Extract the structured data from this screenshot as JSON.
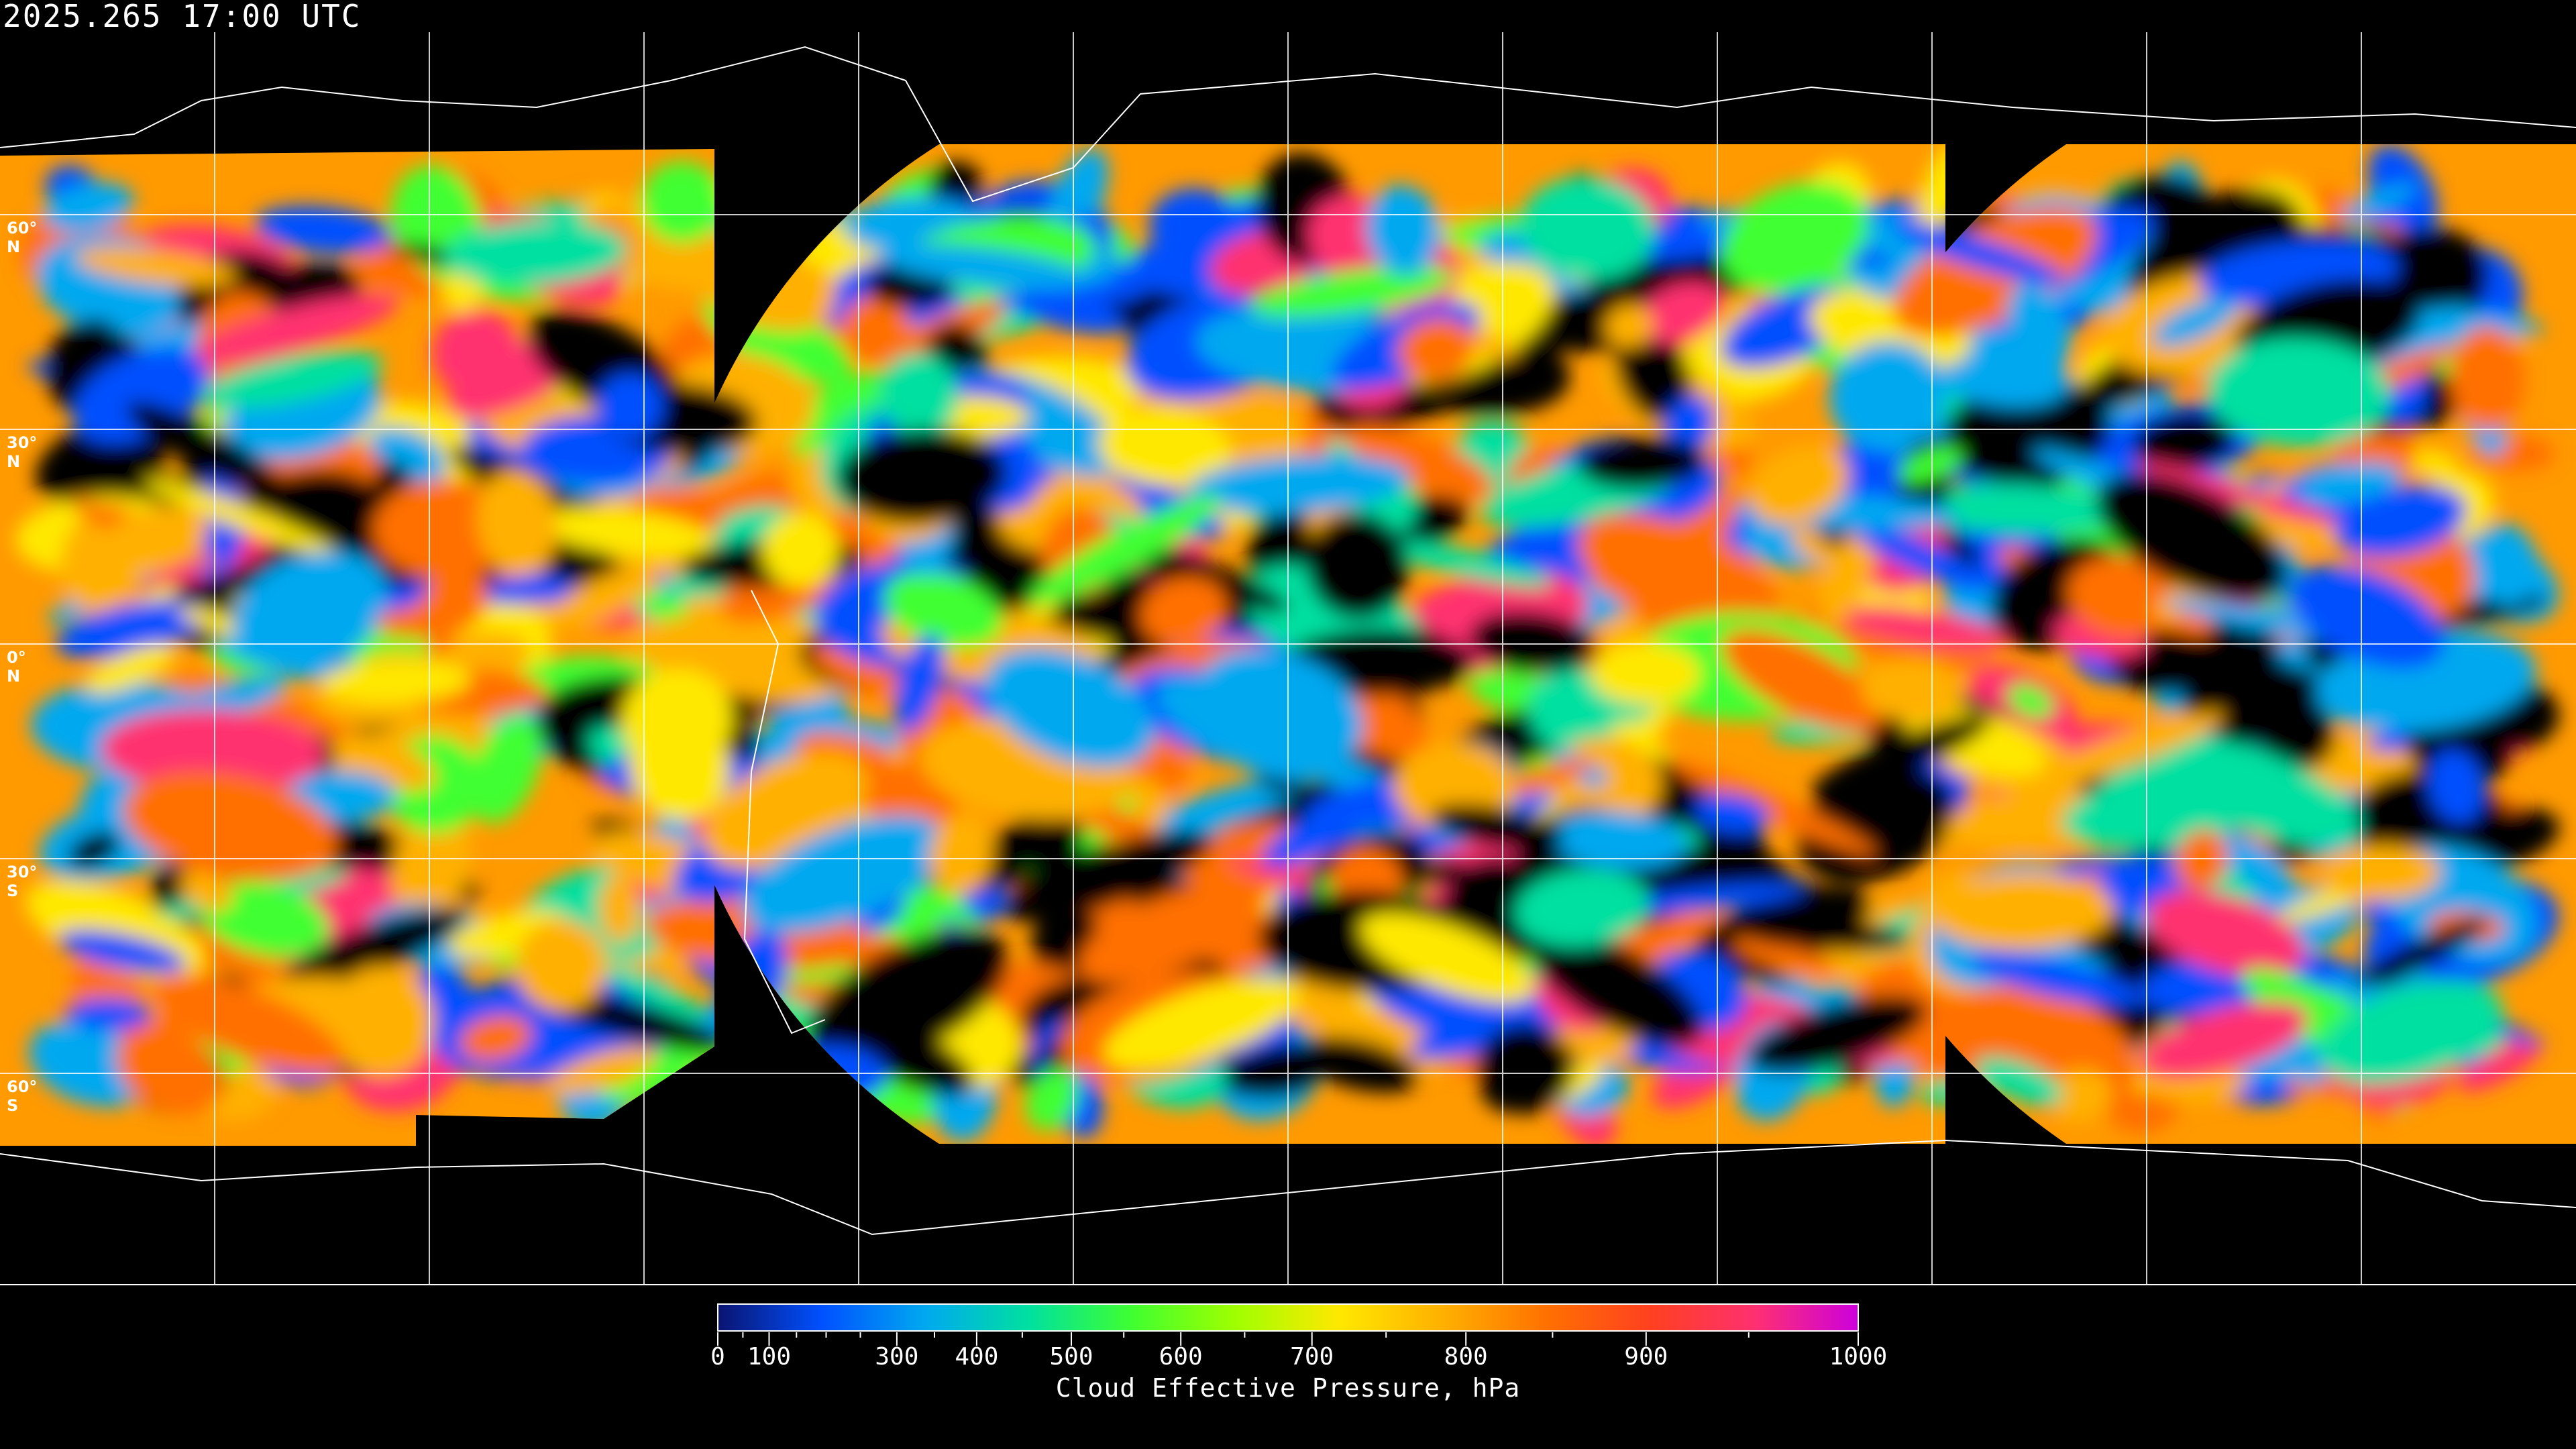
{
  "title": "2025.265 17:00 UTC",
  "latitude_labels": [
    "60° N",
    "30° N",
    "0° N",
    "30° S",
    "60° S"
  ],
  "latitudes": [
    60,
    30,
    0,
    -30,
    -60
  ],
  "longitude_grid_step_deg": 30,
  "colorbar": {
    "label": "Cloud Effective Pressure, hPa",
    "range": [
      0,
      1000
    ],
    "tick_labels": [
      "0",
      "100",
      "300",
      "400",
      "500",
      "600",
      "700",
      "800",
      "900",
      "1000"
    ],
    "tick_values": [
      0,
      100,
      300,
      400,
      500,
      600,
      700,
      800,
      900,
      1000
    ],
    "minor_tick_values": [
      50,
      150,
      200,
      250,
      350,
      450,
      550,
      650,
      750,
      850,
      950
    ],
    "scale": "nonlinear",
    "colors": [
      "#0a1470",
      "#0050ff",
      "#00a8f0",
      "#00e0a0",
      "#40ff30",
      "#a0ff00",
      "#ffe800",
      "#ffb000",
      "#ff7000",
      "#ff4020",
      "#ff3070",
      "#cc00dd"
    ]
  },
  "no_data_color": "#000000",
  "grid_color": "#ffffff"
}
